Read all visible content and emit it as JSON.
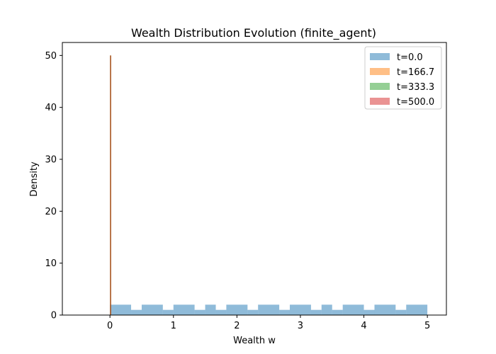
{
  "chart_data": {
    "type": "bar",
    "title": "Wealth Distribution Evolution (finite_agent)",
    "xlabel": "Wealth w",
    "ylabel": "Density",
    "xlim": [
      -0.75,
      5.3
    ],
    "ylim": [
      0,
      52.5
    ],
    "xticks": [
      "0",
      "1",
      "2",
      "3",
      "4",
      "5"
    ],
    "yticks": [
      "0",
      "10",
      "20",
      "30",
      "40",
      "50"
    ],
    "grid": false,
    "legend_position": "top-right",
    "series": [
      {
        "name": "t=0.0",
        "color": "#1f77b4",
        "alpha": 0.5,
        "bins": [
          {
            "x0": 0.0,
            "x1": 0.333,
            "y": 2
          },
          {
            "x0": 0.333,
            "x1": 0.5,
            "y": 1
          },
          {
            "x0": 0.5,
            "x1": 0.833,
            "y": 2
          },
          {
            "x0": 0.833,
            "x1": 1.0,
            "y": 1
          },
          {
            "x0": 1.0,
            "x1": 1.333,
            "y": 2
          },
          {
            "x0": 1.333,
            "x1": 1.5,
            "y": 1
          },
          {
            "x0": 1.5,
            "x1": 1.667,
            "y": 2
          },
          {
            "x0": 1.667,
            "x1": 1.833,
            "y": 1
          },
          {
            "x0": 1.833,
            "x1": 2.167,
            "y": 2
          },
          {
            "x0": 2.167,
            "x1": 2.333,
            "y": 1
          },
          {
            "x0": 2.333,
            "x1": 2.667,
            "y": 2
          },
          {
            "x0": 2.667,
            "x1": 2.833,
            "y": 1
          },
          {
            "x0": 2.833,
            "x1": 3.167,
            "y": 2
          },
          {
            "x0": 3.167,
            "x1": 3.333,
            "y": 1
          },
          {
            "x0": 3.333,
            "x1": 3.5,
            "y": 2
          },
          {
            "x0": 3.5,
            "x1": 3.667,
            "y": 1
          },
          {
            "x0": 3.667,
            "x1": 4.0,
            "y": 2
          },
          {
            "x0": 4.0,
            "x1": 4.167,
            "y": 1
          },
          {
            "x0": 4.167,
            "x1": 4.5,
            "y": 2
          },
          {
            "x0": 4.5,
            "x1": 4.667,
            "y": 1
          },
          {
            "x0": 4.667,
            "x1": 5.0,
            "y": 2
          }
        ]
      },
      {
        "name": "t=166.7",
        "color": "#ff7f0e",
        "alpha": 0.5,
        "bins": [
          {
            "x0": 0.0,
            "x1": 0.02,
            "y": 50
          }
        ]
      },
      {
        "name": "t=333.3",
        "color": "#2ca02c",
        "alpha": 0.5,
        "bins": [
          {
            "x0": 0.0,
            "x1": 0.02,
            "y": 50
          }
        ]
      },
      {
        "name": "t=500.0",
        "color": "#d62728",
        "alpha": 0.5,
        "bins": [
          {
            "x0": 0.0,
            "x1": 0.02,
            "y": 50
          }
        ]
      }
    ]
  }
}
